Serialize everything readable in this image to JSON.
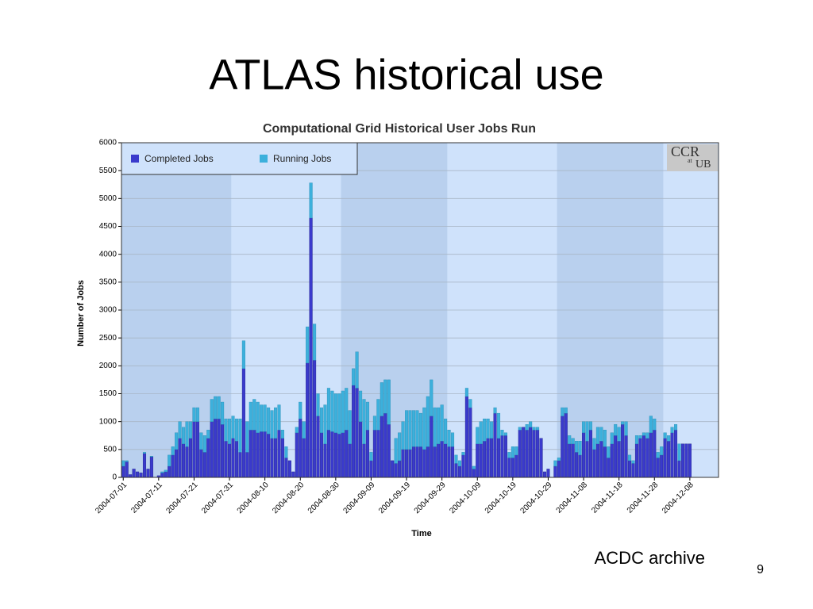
{
  "slide": {
    "title": "ATLAS historical use",
    "caption": "ACDC archive",
    "page_number": "9",
    "logo": [
      "CCR",
      "at",
      "UB"
    ]
  },
  "chart_data": {
    "type": "stacked_bar",
    "title": "Computational Grid Historical User Jobs Run",
    "x_label": "Time",
    "y_label": "Number of Jobs",
    "ylim": [
      0,
      6000
    ],
    "yticks": [
      0,
      500,
      1000,
      1500,
      2000,
      2500,
      3000,
      3500,
      4000,
      4500,
      5000,
      5500,
      6000
    ],
    "grid": true,
    "legend": "top-left",
    "categories": [
      "2004-07-01",
      null,
      null,
      null,
      null,
      null,
      null,
      null,
      null,
      null,
      "2004-07-11",
      null,
      null,
      null,
      null,
      null,
      null,
      null,
      null,
      null,
      "2004-07-21",
      null,
      null,
      null,
      null,
      null,
      null,
      null,
      null,
      null,
      "2004-07-31",
      null,
      null,
      null,
      null,
      null,
      null,
      null,
      null,
      null,
      "2004-08-10",
      null,
      null,
      null,
      null,
      null,
      null,
      null,
      null,
      null,
      "2004-08-20",
      null,
      null,
      null,
      null,
      null,
      null,
      null,
      null,
      null,
      "2004-08-30",
      null,
      null,
      null,
      null,
      null,
      null,
      null,
      null,
      null,
      "2004-09-09",
      null,
      null,
      null,
      null,
      null,
      null,
      null,
      null,
      null,
      "2004-09-19",
      null,
      null,
      null,
      null,
      null,
      null,
      null,
      null,
      null,
      "2004-09-29",
      null,
      null,
      null,
      null,
      null,
      null,
      null,
      null,
      null,
      "2004-10-09",
      null,
      null,
      null,
      null,
      null,
      null,
      null,
      null,
      null,
      "2004-10-19",
      null,
      null,
      null,
      null,
      null,
      null,
      null,
      null,
      null,
      "2004-10-29",
      null,
      null,
      null,
      null,
      null,
      null,
      null,
      null,
      null,
      "2004-11-08",
      null,
      null,
      null,
      null,
      null,
      null,
      null,
      null,
      null,
      "2004-11-18",
      null,
      null,
      null,
      null,
      null,
      null,
      null,
      null,
      null,
      "2004-11-28",
      null,
      null,
      null,
      null,
      null,
      null,
      null,
      null,
      null,
      "2004-12-08"
    ],
    "series": [
      {
        "name": "Completed Jobs",
        "color": "#3a3acc",
        "values": [
          200,
          280,
          50,
          150,
          100,
          80,
          430,
          150,
          370,
          0,
          30,
          80,
          100,
          200,
          400,
          500,
          700,
          600,
          550,
          700,
          1000,
          1000,
          500,
          450,
          700,
          1000,
          1050,
          1050,
          950,
          650,
          600,
          700,
          650,
          450,
          1950,
          450,
          850,
          850,
          800,
          820,
          820,
          780,
          700,
          700,
          850,
          700,
          350,
          300,
          100,
          800,
          1050,
          700,
          2050,
          4650,
          2100,
          1100,
          800,
          600,
          850,
          820,
          800,
          780,
          800,
          850,
          600,
          1650,
          1600,
          1000,
          600,
          850,
          300,
          850,
          850,
          1100,
          1150,
          950,
          300,
          250,
          300,
          500,
          500,
          500,
          550,
          550,
          550,
          500,
          550,
          1100,
          550,
          600,
          650,
          600,
          550,
          550,
          250,
          200,
          400,
          1450,
          1250,
          150,
          600,
          600,
          650,
          700,
          700,
          1150,
          700,
          750,
          750,
          350,
          350,
          400,
          850,
          900,
          850,
          900,
          850,
          850,
          700,
          100,
          150,
          0,
          200,
          300,
          1100,
          1150,
          600,
          600,
          450,
          400,
          800,
          650,
          850,
          500,
          600,
          650,
          550,
          350,
          600,
          750,
          650,
          950,
          750,
          300,
          250,
          600,
          700,
          750,
          700,
          800,
          850,
          350,
          400,
          700,
          650,
          800,
          850,
          300,
          600,
          600,
          600
        ]
      },
      {
        "name": "Running Jobs",
        "color": "#3cb0dc",
        "values": [
          100,
          20,
          0,
          0,
          0,
          0,
          20,
          0,
          10,
          0,
          0,
          20,
          30,
          200,
          150,
          300,
          300,
          300,
          450,
          300,
          250,
          250,
          300,
          300,
          150,
          400,
          400,
          400,
          400,
          400,
          450,
          400,
          400,
          600,
          500,
          550,
          500,
          550,
          550,
          480,
          480,
          470,
          500,
          550,
          450,
          150,
          200,
          0,
          0,
          100,
          300,
          300,
          650,
          630,
          650,
          400,
          450,
          700,
          750,
          730,
          700,
          720,
          750,
          750,
          600,
          300,
          650,
          550,
          800,
          500,
          150,
          250,
          550,
          600,
          600,
          800,
          0,
          450,
          500,
          500,
          700,
          700,
          650,
          650,
          600,
          750,
          900,
          650,
          700,
          650,
          650,
          450,
          300,
          250,
          150,
          100,
          50,
          150,
          150,
          50,
          300,
          400,
          400,
          350,
          300,
          100,
          450,
          100,
          50,
          100,
          200,
          150,
          50,
          0,
          100,
          100,
          50,
          50,
          0,
          0,
          0,
          0,
          100,
          50,
          150,
          100,
          150,
          100,
          200,
          250,
          200,
          350,
          150,
          200,
          300,
          250,
          300,
          200,
          200,
          200,
          250,
          50,
          250,
          100,
          50,
          150,
          50,
          50,
          100,
          300,
          200,
          100,
          150,
          100,
          100,
          100,
          100,
          300,
          0,
          0,
          0
        ]
      }
    ]
  }
}
